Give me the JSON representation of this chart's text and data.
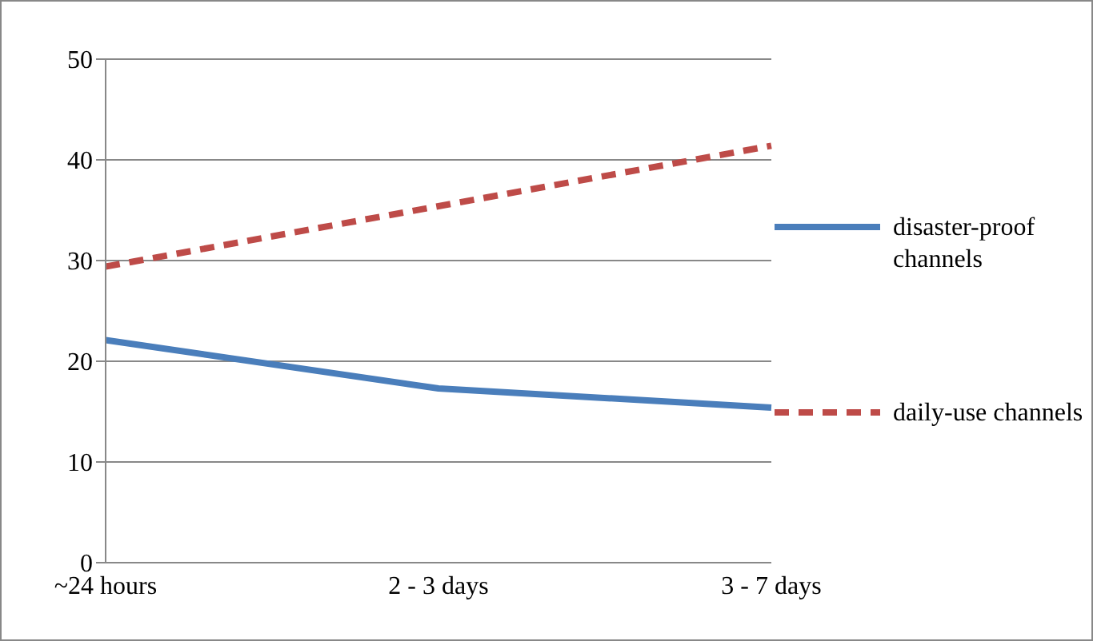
{
  "chart_data": {
    "type": "line",
    "categories": [
      "~24 hours",
      "2 - 3 days",
      "3 - 7 days"
    ],
    "series": [
      {
        "name": "disaster-proof channels",
        "color": "#4a7ebb",
        "values": [
          22.1,
          17.3,
          15.4
        ],
        "line_style": "solid"
      },
      {
        "name": "daily-use channels",
        "color": "#be4b48",
        "values": [
          29.4,
          35.4,
          41.4
        ],
        "line_style": "dashed"
      }
    ],
    "ylim": [
      0,
      50
    ],
    "yticks": [
      0,
      10,
      20,
      30,
      40,
      50
    ],
    "grid": "y",
    "legend": "right",
    "marker": "none"
  }
}
